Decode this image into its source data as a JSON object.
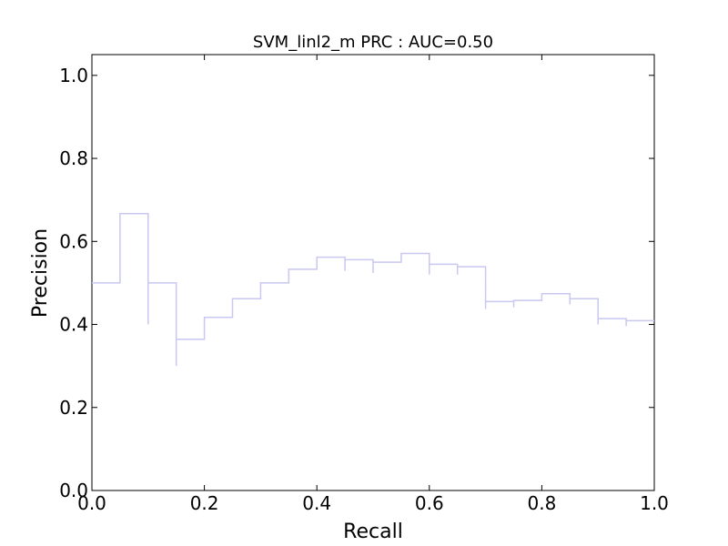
{
  "chart_data": {
    "type": "line",
    "title": "SVM_linl2_m PRC : AUC=0.50",
    "xlabel": "Recall",
    "ylabel": "Precision",
    "xlim": [
      0.0,
      1.0
    ],
    "ylim": [
      0.0,
      1.05
    ],
    "xticks": [
      "0.0",
      "0.2",
      "0.4",
      "0.6",
      "0.8",
      "1.0"
    ],
    "yticks": [
      "0.0",
      "0.2",
      "0.4",
      "0.6",
      "0.8",
      "1.0"
    ],
    "grid": false,
    "legend": "none",
    "line_style": "step",
    "line_color": "#c8c8f0",
    "series": [
      {
        "x": [
          0.0,
          0.05,
          0.05,
          0.1,
          0.1,
          0.15,
          0.15,
          0.2,
          0.2,
          0.25,
          0.25,
          0.3,
          0.3,
          0.35,
          0.35,
          0.4,
          0.4,
          0.45,
          0.45,
          0.5,
          0.5,
          0.55,
          0.55,
          0.6,
          0.6,
          0.65,
          0.65,
          0.7,
          0.7,
          0.75,
          0.75,
          0.8,
          0.8,
          0.85,
          0.85,
          0.9,
          0.9,
          0.95,
          0.95,
          1.0
        ],
        "y": [
          0.5,
          0.5,
          0.667,
          0.667,
          0.5,
          0.5,
          0.364,
          0.364,
          0.417,
          0.417,
          0.462,
          0.462,
          0.5,
          0.5,
          0.533,
          0.533,
          0.562,
          0.562,
          0.556,
          0.556,
          0.55,
          0.55,
          0.571,
          0.571,
          0.545,
          0.545,
          0.539,
          0.539,
          0.455,
          0.455,
          0.458,
          0.458,
          0.474,
          0.474,
          0.462,
          0.462,
          0.414,
          0.414,
          0.409,
          0.409
        ]
      }
    ],
    "drop_ticks": [
      {
        "x": 0.1,
        "y0": 0.5,
        "y1": 0.4
      },
      {
        "x": 0.15,
        "y0": 0.364,
        "y1": 0.3
      },
      {
        "x": 0.45,
        "y0": 0.556,
        "y1": 0.529
      },
      {
        "x": 0.5,
        "y0": 0.55,
        "y1": 0.524
      },
      {
        "x": 0.6,
        "y0": 0.545,
        "y1": 0.52
      },
      {
        "x": 0.65,
        "y0": 0.539,
        "y1": 0.52
      },
      {
        "x": 0.7,
        "y0": 0.455,
        "y1": 0.437
      },
      {
        "x": 0.75,
        "y0": 0.458,
        "y1": 0.441
      },
      {
        "x": 0.85,
        "y0": 0.462,
        "y1": 0.448
      },
      {
        "x": 0.9,
        "y0": 0.414,
        "y1": 0.4
      },
      {
        "x": 0.95,
        "y0": 0.409,
        "y1": 0.396
      }
    ]
  }
}
